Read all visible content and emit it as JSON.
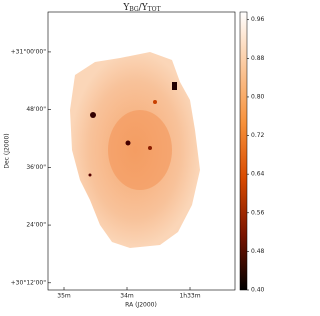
{
  "chart_data": {
    "type": "image",
    "title": [
      "Y",
      "BG",
      "/Y",
      "TOT"
    ],
    "xlabel": "RA (J2000)",
    "ylabel": "Dec (J2000)",
    "xlim": [
      35.254,
      32.286
    ],
    "xticks": [
      {
        "value": 35,
        "label": "35m"
      },
      {
        "value": 34,
        "label": "34m"
      },
      {
        "value": 33,
        "label": "1h33m"
      }
    ],
    "ylim": [
      10.5,
      68.3
    ],
    "yticks": [
      {
        "value": 60,
        "label": "+31°00'00\""
      },
      {
        "value": 48,
        "label": "48'00\""
      },
      {
        "value": 36,
        "label": "36'00\""
      },
      {
        "value": 24,
        "label": "24'00\""
      },
      {
        "value": 12,
        "label": "+30°12'00\""
      }
    ],
    "clim": [
      0.4,
      0.976
    ],
    "cticks": [
      {
        "value": 0.4,
        "label": "0.40"
      },
      0.48,
      0.56,
      0.64,
      0.72,
      {
        "value": 0.8,
        "label": "0.80"
      },
      0.88,
      0.96
    ],
    "colormap": [
      "#000000",
      "#7a1400",
      "#d84a00",
      "#f7913a",
      "#fbc79a",
      "#ffffff"
    ]
  }
}
